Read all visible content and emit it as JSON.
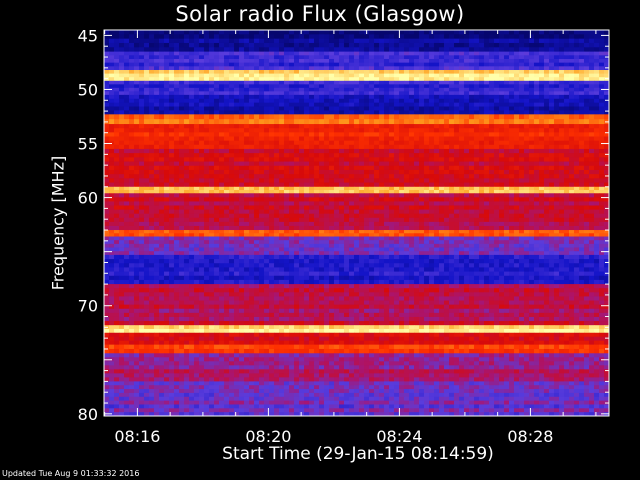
{
  "chart_data": {
    "type": "heatmap",
    "title": "Solar radio Flux (Glasgow)",
    "ylabel": "Frequency [MHz]",
    "xlabel": "Start Time (29-Jan-15 08:14:59)",
    "x_ticks": [
      "08:16",
      "08:20",
      "08:24",
      "08:28"
    ],
    "x_tick_minutes": [
      16,
      20,
      24,
      28
    ],
    "xlim_minutes": [
      14.98,
      30.4
    ],
    "y_ticks": [
      45,
      50,
      55,
      60,
      65,
      70,
      75,
      80
    ],
    "y_tick_labels": [
      "45",
      "50",
      "55",
      "60",
      "",
      "70",
      "",
      "80"
    ],
    "ylim": [
      44.5,
      80.2
    ],
    "y_inverted": true,
    "frequency_bands_mhz": [
      {
        "from": 44.5,
        "to": 46.5,
        "intensity": 0.05
      },
      {
        "from": 46.5,
        "to": 48.2,
        "intensity": 0.22
      },
      {
        "from": 48.2,
        "to": 49.2,
        "intensity": 0.95
      },
      {
        "from": 49.2,
        "to": 50.5,
        "intensity": 0.2
      },
      {
        "from": 50.5,
        "to": 52.3,
        "intensity": 0.12
      },
      {
        "from": 52.3,
        "to": 53.2,
        "intensity": 0.78
      },
      {
        "from": 53.2,
        "to": 55.5,
        "intensity": 0.62
      },
      {
        "from": 55.5,
        "to": 59.0,
        "intensity": 0.48
      },
      {
        "from": 59.0,
        "to": 59.6,
        "intensity": 0.92
      },
      {
        "from": 59.6,
        "to": 63.0,
        "intensity": 0.45
      },
      {
        "from": 63.0,
        "to": 63.6,
        "intensity": 0.72
      },
      {
        "from": 63.6,
        "to": 65.3,
        "intensity": 0.33
      },
      {
        "from": 65.3,
        "to": 68.0,
        "intensity": 0.18
      },
      {
        "from": 68.0,
        "to": 71.8,
        "intensity": 0.42
      },
      {
        "from": 71.8,
        "to": 72.5,
        "intensity": 0.96
      },
      {
        "from": 72.5,
        "to": 73.6,
        "intensity": 0.52
      },
      {
        "from": 73.6,
        "to": 74.4,
        "intensity": 0.7
      },
      {
        "from": 74.4,
        "to": 77.0,
        "intensity": 0.38
      },
      {
        "from": 77.0,
        "to": 80.2,
        "intensity": 0.3
      }
    ],
    "colors": {
      "low": "#0a0a8a",
      "mid_low": "#4a3ad0",
      "mid": "#d41010",
      "mid_high": "#ff4a00",
      "high": "#ffff90",
      "axis": "#ffffff"
    }
  },
  "footer": {
    "updated": "Updated Tue Aug  9 01:33:32 2016"
  }
}
